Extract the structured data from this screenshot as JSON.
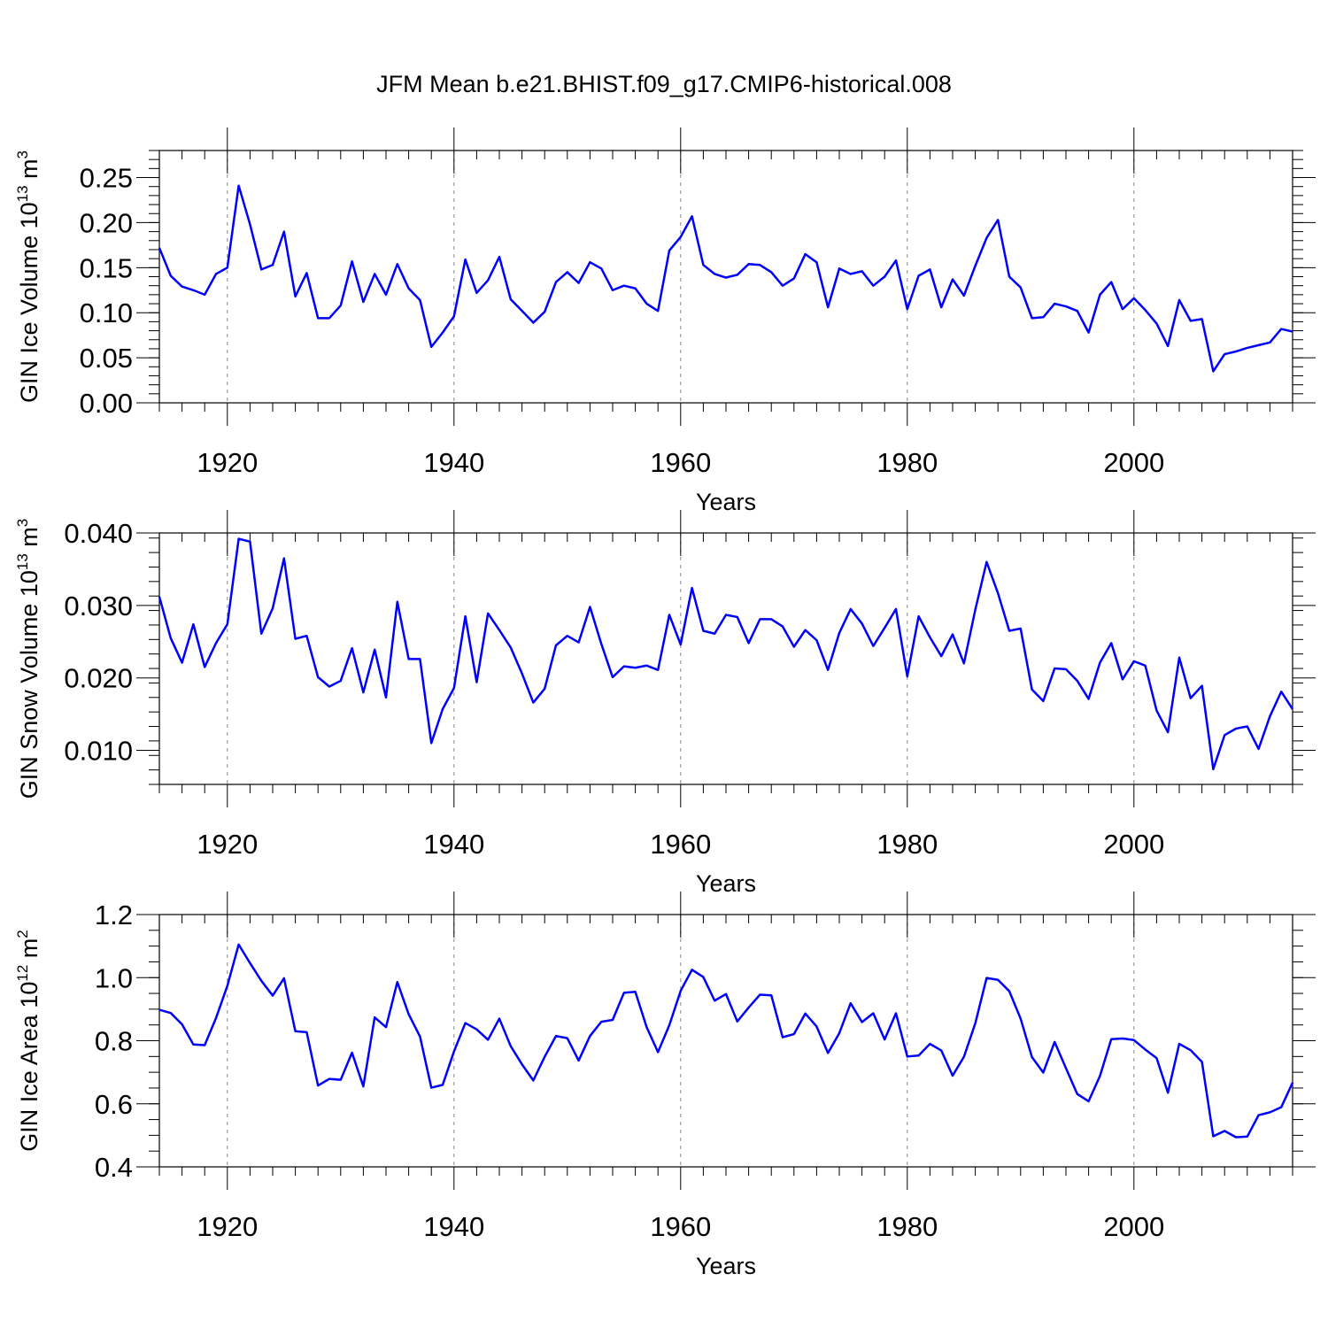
{
  "title": "JFM Mean b.e21.BHIST.f09_g17.CMIP6-historical.008",
  "colors": {
    "line": "#0000ff",
    "axis": "#000000",
    "grid": "#888888",
    "background": "#ffffff"
  },
  "chart_data": [
    {
      "type": "line",
      "title": "",
      "xlabel": "Years",
      "ylabel": {
        "prefix": "GIN Ice Volume 10",
        "sup1": "13",
        "mid": " m",
        "sup2": "3"
      },
      "xlim": [
        1914,
        2014
      ],
      "ylim": [
        0.0,
        0.28
      ],
      "xticks": [
        1920,
        1940,
        1960,
        1980,
        2000
      ],
      "xtick_labels": [
        "1920",
        "1940",
        "1960",
        "1980",
        "2000"
      ],
      "yticks": [
        0.0,
        0.05,
        0.1,
        0.15,
        0.2,
        0.25
      ],
      "ytick_labels": [
        "0.00",
        "0.05",
        "0.10",
        "0.15",
        "0.20",
        "0.25"
      ],
      "grid": "vertical dashed at major x ticks",
      "series": [
        {
          "name": "GIN Ice Volume",
          "x_start": 1914,
          "values": [
            0.172,
            0.141,
            0.129,
            0.125,
            0.12,
            0.143,
            0.15,
            0.241,
            0.198,
            0.148,
            0.153,
            0.19,
            0.118,
            0.144,
            0.094,
            0.094,
            0.108,
            0.157,
            0.112,
            0.143,
            0.12,
            0.154,
            0.127,
            0.114,
            0.062,
            0.078,
            0.096,
            0.159,
            0.122,
            0.136,
            0.162,
            0.115,
            0.102,
            0.089,
            0.101,
            0.134,
            0.145,
            0.133,
            0.156,
            0.149,
            0.125,
            0.13,
            0.127,
            0.11,
            0.102,
            0.169,
            0.184,
            0.207,
            0.153,
            0.143,
            0.139,
            0.142,
            0.154,
            0.153,
            0.145,
            0.13,
            0.138,
            0.165,
            0.156,
            0.106,
            0.149,
            0.143,
            0.146,
            0.13,
            0.14,
            0.158,
            0.104,
            0.141,
            0.148,
            0.106,
            0.137,
            0.119,
            0.152,
            0.183,
            0.203,
            0.14,
            0.128,
            0.094,
            0.095,
            0.11,
            0.107,
            0.102,
            0.078,
            0.12,
            0.134,
            0.104,
            0.116,
            0.103,
            0.088,
            0.063,
            0.114,
            0.091,
            0.093,
            0.035,
            0.054,
            0.057,
            0.061,
            0.064,
            0.067,
            0.082,
            0.079
          ]
        }
      ]
    },
    {
      "type": "line",
      "title": "",
      "xlabel": "Years",
      "ylabel": {
        "prefix": "GIN Snow Volume 10",
        "sup1": "13",
        "mid": " m",
        "sup2": "3"
      },
      "xlim": [
        1914,
        2014
      ],
      "ylim": [
        0.0053,
        0.04
      ],
      "xticks": [
        1920,
        1940,
        1960,
        1980,
        2000
      ],
      "xtick_labels": [
        "1920",
        "1940",
        "1960",
        "1980",
        "2000"
      ],
      "yticks": [
        0.01,
        0.02,
        0.03,
        0.04
      ],
      "ytick_labels": [
        "0.010",
        "0.020",
        "0.030",
        "0.040"
      ],
      "grid": "vertical dashed at major x ticks",
      "series": [
        {
          "name": "GIN Snow Volume",
          "x_start": 1914,
          "values": [
            0.0312,
            0.0255,
            0.0221,
            0.0274,
            0.0215,
            0.0248,
            0.0274,
            0.0392,
            0.0388,
            0.0261,
            0.0296,
            0.0365,
            0.0254,
            0.0258,
            0.0201,
            0.0188,
            0.0196,
            0.0241,
            0.018,
            0.0239,
            0.0173,
            0.0305,
            0.0226,
            0.0226,
            0.011,
            0.0157,
            0.0186,
            0.0285,
            0.0194,
            0.0289,
            0.0266,
            0.0242,
            0.0206,
            0.0166,
            0.0185,
            0.0245,
            0.0258,
            0.0249,
            0.0298,
            0.0247,
            0.0201,
            0.0216,
            0.0214,
            0.0217,
            0.0211,
            0.0287,
            0.0246,
            0.0324,
            0.0265,
            0.0261,
            0.0287,
            0.0284,
            0.0248,
            0.0281,
            0.0281,
            0.0271,
            0.0243,
            0.0266,
            0.0252,
            0.0211,
            0.0262,
            0.0295,
            0.0275,
            0.0244,
            0.0269,
            0.0295,
            0.0202,
            0.0285,
            0.0256,
            0.023,
            0.026,
            0.022,
            0.0294,
            0.036,
            0.0317,
            0.0265,
            0.0268,
            0.0184,
            0.0168,
            0.0213,
            0.0212,
            0.0196,
            0.0171,
            0.0221,
            0.0248,
            0.0198,
            0.0223,
            0.0217,
            0.0155,
            0.0125,
            0.0228,
            0.0172,
            0.0189,
            0.0074,
            0.0121,
            0.013,
            0.0133,
            0.0102,
            0.0147,
            0.0181,
            0.0157
          ]
        }
      ]
    },
    {
      "type": "line",
      "title": "",
      "xlabel": "Years",
      "ylabel": {
        "prefix": "GIN Ice Area 10",
        "sup1": "12",
        "mid": " m",
        "sup2": "2"
      },
      "xlim": [
        1914,
        2014
      ],
      "ylim": [
        0.4,
        1.2
      ],
      "xticks": [
        1920,
        1940,
        1960,
        1980,
        2000
      ],
      "xtick_labels": [
        "1920",
        "1940",
        "1960",
        "1980",
        "2000"
      ],
      "yticks": [
        0.4,
        0.6,
        0.8,
        1.0,
        1.2
      ],
      "ytick_labels": [
        "0.4",
        "0.6",
        "0.8",
        "1.0",
        "1.2"
      ],
      "grid": "vertical dashed at major x ticks",
      "series": [
        {
          "name": "GIN Ice Area",
          "x_start": 1914,
          "values": [
            0.898,
            0.888,
            0.852,
            0.788,
            0.786,
            0.872,
            0.974,
            1.105,
            1.046,
            0.99,
            0.943,
            0.998,
            0.83,
            0.827,
            0.658,
            0.679,
            0.676,
            0.762,
            0.655,
            0.874,
            0.843,
            0.986,
            0.884,
            0.813,
            0.651,
            0.66,
            0.766,
            0.856,
            0.836,
            0.803,
            0.87,
            0.783,
            0.725,
            0.674,
            0.749,
            0.815,
            0.808,
            0.737,
            0.815,
            0.86,
            0.866,
            0.952,
            0.955,
            0.843,
            0.764,
            0.849,
            0.958,
            1.025,
            1.002,
            0.927,
            0.948,
            0.861,
            0.905,
            0.946,
            0.944,
            0.811,
            0.821,
            0.886,
            0.845,
            0.761,
            0.824,
            0.919,
            0.859,
            0.887,
            0.804,
            0.887,
            0.75,
            0.753,
            0.79,
            0.769,
            0.689,
            0.749,
            0.855,
            0.999,
            0.993,
            0.957,
            0.87,
            0.748,
            0.699,
            0.796,
            0.713,
            0.631,
            0.608,
            0.688,
            0.805,
            0.807,
            0.802,
            0.772,
            0.745,
            0.635,
            0.79,
            0.77,
            0.733,
            0.497,
            0.514,
            0.494,
            0.496,
            0.564,
            0.573,
            0.589,
            0.667
          ]
        }
      ]
    }
  ]
}
